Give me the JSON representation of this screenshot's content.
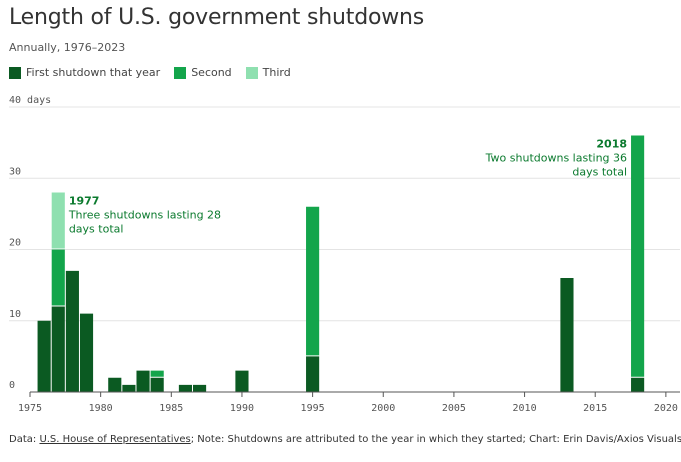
{
  "title": "Length of U.S. government shutdowns",
  "subtitle": "Annually, 1976–2023",
  "colors": {
    "first": "#0b5a22",
    "second": "#13a54b",
    "third": "#8fe0b0",
    "annotation": "#0b7a2e",
    "grid": "#e4e4e4"
  },
  "legend": [
    {
      "label": "First shutdown that year",
      "color": "#0b5a22"
    },
    {
      "label": "Second",
      "color": "#13a54b"
    },
    {
      "label": "Third",
      "color": "#8fe0b0"
    }
  ],
  "chart_data": {
    "type": "bar",
    "stacked": true,
    "xlim": [
      1975,
      2021
    ],
    "ylim": [
      0,
      40
    ],
    "x_ticks": [
      1975,
      1980,
      1985,
      1990,
      1995,
      2000,
      2005,
      2010,
      2015,
      2020
    ],
    "y_ticks": [
      0,
      10,
      20,
      30,
      40
    ],
    "y_unit_label": "40 days",
    "grid": true,
    "legend_position": "top-left",
    "x": [
      1976,
      1977,
      1978,
      1979,
      1981,
      1982,
      1983,
      1984,
      1986,
      1987,
      1990,
      1995,
      2013,
      2018
    ],
    "series": [
      {
        "name": "First shutdown that year",
        "values": [
          10,
          12,
          17,
          11,
          2,
          1,
          3,
          2,
          1,
          1,
          3,
          5,
          16,
          2
        ]
      },
      {
        "name": "Second",
        "values": [
          0,
          8,
          0,
          0,
          0,
          0,
          0,
          1,
          0,
          0,
          0,
          21,
          0,
          34
        ]
      },
      {
        "name": "Third",
        "values": [
          0,
          8,
          0,
          0,
          0,
          0,
          0,
          0,
          0,
          0,
          0,
          0,
          0,
          0
        ]
      }
    ],
    "annotations": [
      {
        "year": "1977",
        "text": [
          "Three shutdowns lasting 28",
          "days total"
        ],
        "align": "left"
      },
      {
        "year": "2018",
        "text": [
          "Two shutdowns lasting 36",
          "days total"
        ],
        "align": "right"
      }
    ]
  },
  "footer": {
    "prefix": "Data: ",
    "source_link": "U.S. House of Representatives",
    "rest": "; Note: Shutdowns are attributed to the year in which they started; Chart: Erin Davis/Axios Visuals"
  }
}
